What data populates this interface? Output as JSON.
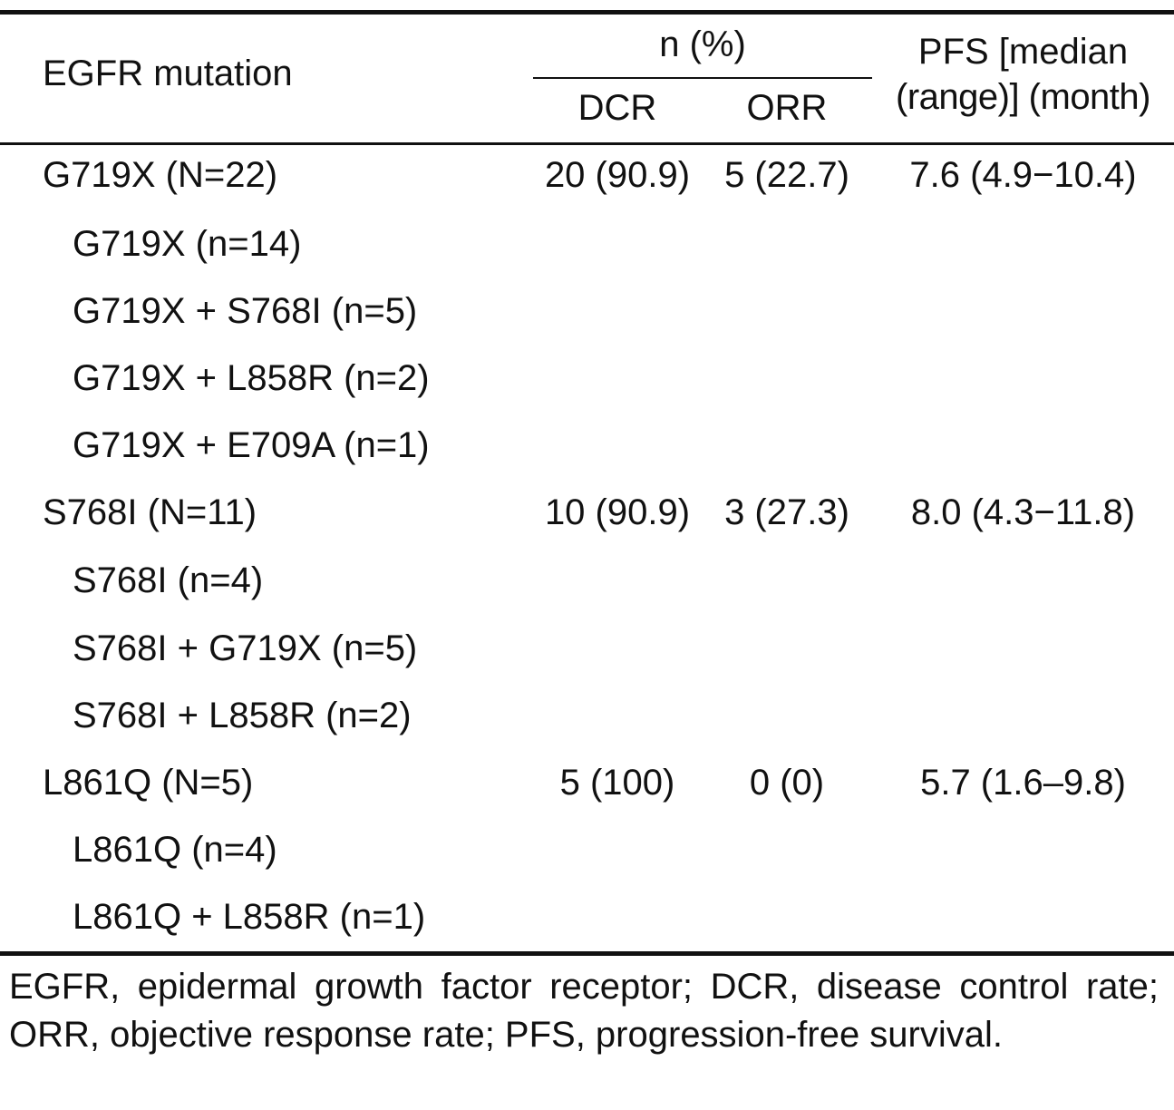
{
  "header": {
    "mutation_label": "EGFR mutation",
    "n_pct_label": "n (%)",
    "dcr_label": "DCR",
    "orr_label": "ORR",
    "pfs_label_line1": "PFS [median",
    "pfs_label_line2": "(range)] (month)"
  },
  "rows": [
    {
      "label": "G719X (N=22)",
      "dcr": "20 (90.9)",
      "orr": "5 (22.7)",
      "pfs": "7.6 (4.9−10.4)"
    },
    {
      "label": "G719X (n=14)"
    },
    {
      "label": "G719X + S768I (n=5)"
    },
    {
      "label": "G719X + L858R (n=2)"
    },
    {
      "label": "G719X + E709A (n=1)"
    },
    {
      "label": "S768I (N=11)",
      "dcr": "10 (90.9)",
      "orr": "3 (27.3)",
      "pfs": "8.0 (4.3−11.8)"
    },
    {
      "label": "S768I (n=4)"
    },
    {
      "label": "S768I + G719X (n=5)"
    },
    {
      "label": "S768I + L858R (n=2)"
    },
    {
      "label": "L861Q (N=5)",
      "dcr": "5 (100)",
      "orr": "0 (0)",
      "pfs": "5.7 (1.6–9.8)"
    },
    {
      "label": "L861Q (n=4)"
    },
    {
      "label": "L861Q + L858R (n=1)"
    }
  ],
  "footnote": "EGFR, epidermal growth factor receptor; DCR, disease control rate; ORR, objective response rate; PFS, progression-free survival."
}
